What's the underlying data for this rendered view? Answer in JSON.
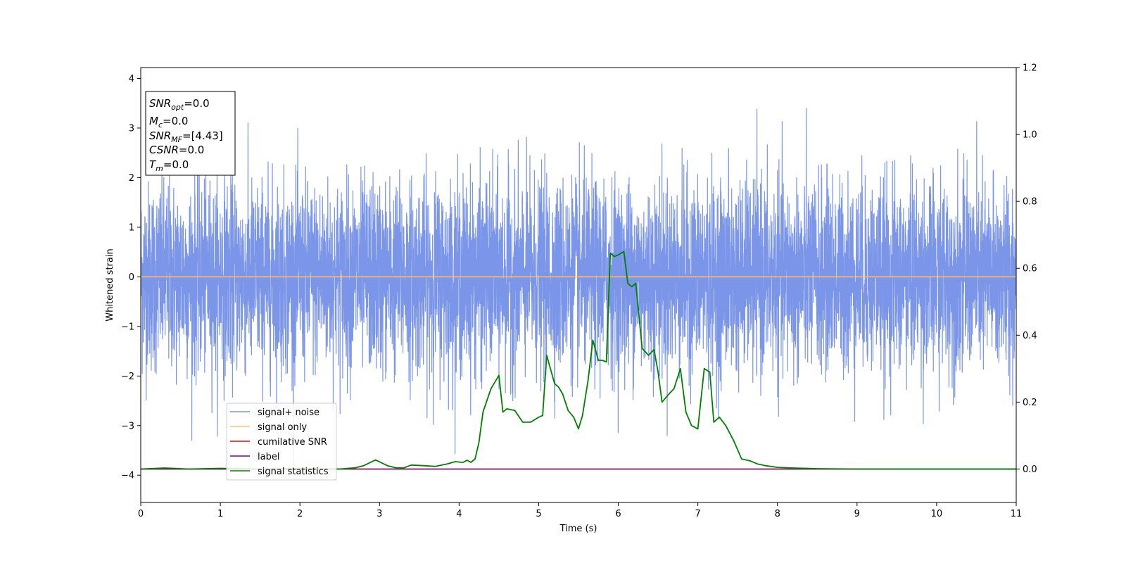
{
  "chart_data": {
    "type": "line",
    "xlabel": "Time (s)",
    "ylabel": "Whitened strain",
    "xlim": [
      0,
      11
    ],
    "ylim": [
      -4.55,
      4.22
    ],
    "y2lim": [
      -0.1,
      1.2
    ],
    "x_ticks": [
      "0",
      "1",
      "2",
      "3",
      "4",
      "5",
      "6",
      "7",
      "8",
      "9",
      "10",
      "11"
    ],
    "y_ticks": [
      "−4",
      "−3",
      "−2",
      "−1",
      "0",
      "1",
      "2",
      "3",
      "4"
    ],
    "y2_ticks": [
      "0.0",
      "0.2",
      "0.4",
      "0.6",
      "0.8",
      "1.0",
      "1.2"
    ],
    "grid": false,
    "legend_position": "lower-left",
    "annotation": [
      {
        "base": "SNR",
        "sub": "opt",
        "value": "=0.0"
      },
      {
        "base": "M",
        "sub": "c",
        "value": "=0.0"
      },
      {
        "base": "SNR",
        "sub": "MF",
        "value": "=[4.43]"
      },
      {
        "base": "CSNR",
        "sub": "",
        "value": "=0.0"
      },
      {
        "base": "T",
        "sub": "m",
        "value": "=0.0"
      }
    ],
    "series": [
      {
        "name": "signal+ noise",
        "color": "#7b96e8",
        "axis": "left",
        "style": "dense noise, approx. standard normal, range about -4.2 to 3.8",
        "approx_envelope": {
          "x": [
            0,
            11
          ],
          "ymin": [
            -4.17,
            -4.17
          ],
          "ymax": [
            3.82,
            3.82
          ]
        }
      },
      {
        "name": "signal only",
        "color": "#ffbf66",
        "axis": "left",
        "x": [
          0,
          11
        ],
        "y": [
          0,
          0
        ]
      },
      {
        "name": "cumilative SNR",
        "color": "#ff0000",
        "axis": "right",
        "x": [
          0,
          11
        ],
        "y": [
          0,
          0
        ]
      },
      {
        "name": "label",
        "color": "#800080",
        "axis": "right",
        "x": [
          0,
          11
        ],
        "y": [
          0,
          0
        ]
      },
      {
        "name": "signal statistics",
        "color": "#008000",
        "axis": "right",
        "x": [
          0,
          0.3,
          0.6,
          1.0,
          1.5,
          2.0,
          2.5,
          2.7,
          2.8,
          2.95,
          3.1,
          3.2,
          3.3,
          3.4,
          3.55,
          3.7,
          3.85,
          3.95,
          4.05,
          4.1,
          4.15,
          4.2,
          4.25,
          4.3,
          4.4,
          4.5,
          4.55,
          4.6,
          4.7,
          4.8,
          4.9,
          5.0,
          5.05,
          5.1,
          5.2,
          5.25,
          5.3,
          5.37,
          5.44,
          5.5,
          5.55,
          5.62,
          5.68,
          5.75,
          5.8,
          5.85,
          5.9,
          5.95,
          6.0,
          6.07,
          6.12,
          6.17,
          6.22,
          6.3,
          6.38,
          6.45,
          6.5,
          6.55,
          6.62,
          6.7,
          6.78,
          6.85,
          6.92,
          7.0,
          7.08,
          7.15,
          7.2,
          7.27,
          7.35,
          7.45,
          7.55,
          7.65,
          7.75,
          7.85,
          8.0,
          8.2,
          8.5,
          9.0,
          10.0,
          11.0
        ],
        "y": [
          0.0,
          0.003,
          0.0,
          0.002,
          0.0,
          0.002,
          0.0,
          0.004,
          0.01,
          0.027,
          0.01,
          0.004,
          0.003,
          0.012,
          0.01,
          0.008,
          0.015,
          0.022,
          0.02,
          0.026,
          0.02,
          0.03,
          0.08,
          0.17,
          0.24,
          0.28,
          0.17,
          0.18,
          0.175,
          0.14,
          0.14,
          0.155,
          0.16,
          0.34,
          0.255,
          0.245,
          0.225,
          0.175,
          0.155,
          0.12,
          0.16,
          0.265,
          0.385,
          0.325,
          0.325,
          0.32,
          0.645,
          0.635,
          0.64,
          0.65,
          0.555,
          0.545,
          0.555,
          0.36,
          0.34,
          0.357,
          0.29,
          0.2,
          0.22,
          0.24,
          0.3,
          0.17,
          0.13,
          0.12,
          0.3,
          0.29,
          0.14,
          0.155,
          0.13,
          0.085,
          0.03,
          0.025,
          0.015,
          0.01,
          0.005,
          0.003,
          0.001,
          0.0,
          0.0,
          0.0
        ]
      }
    ]
  }
}
